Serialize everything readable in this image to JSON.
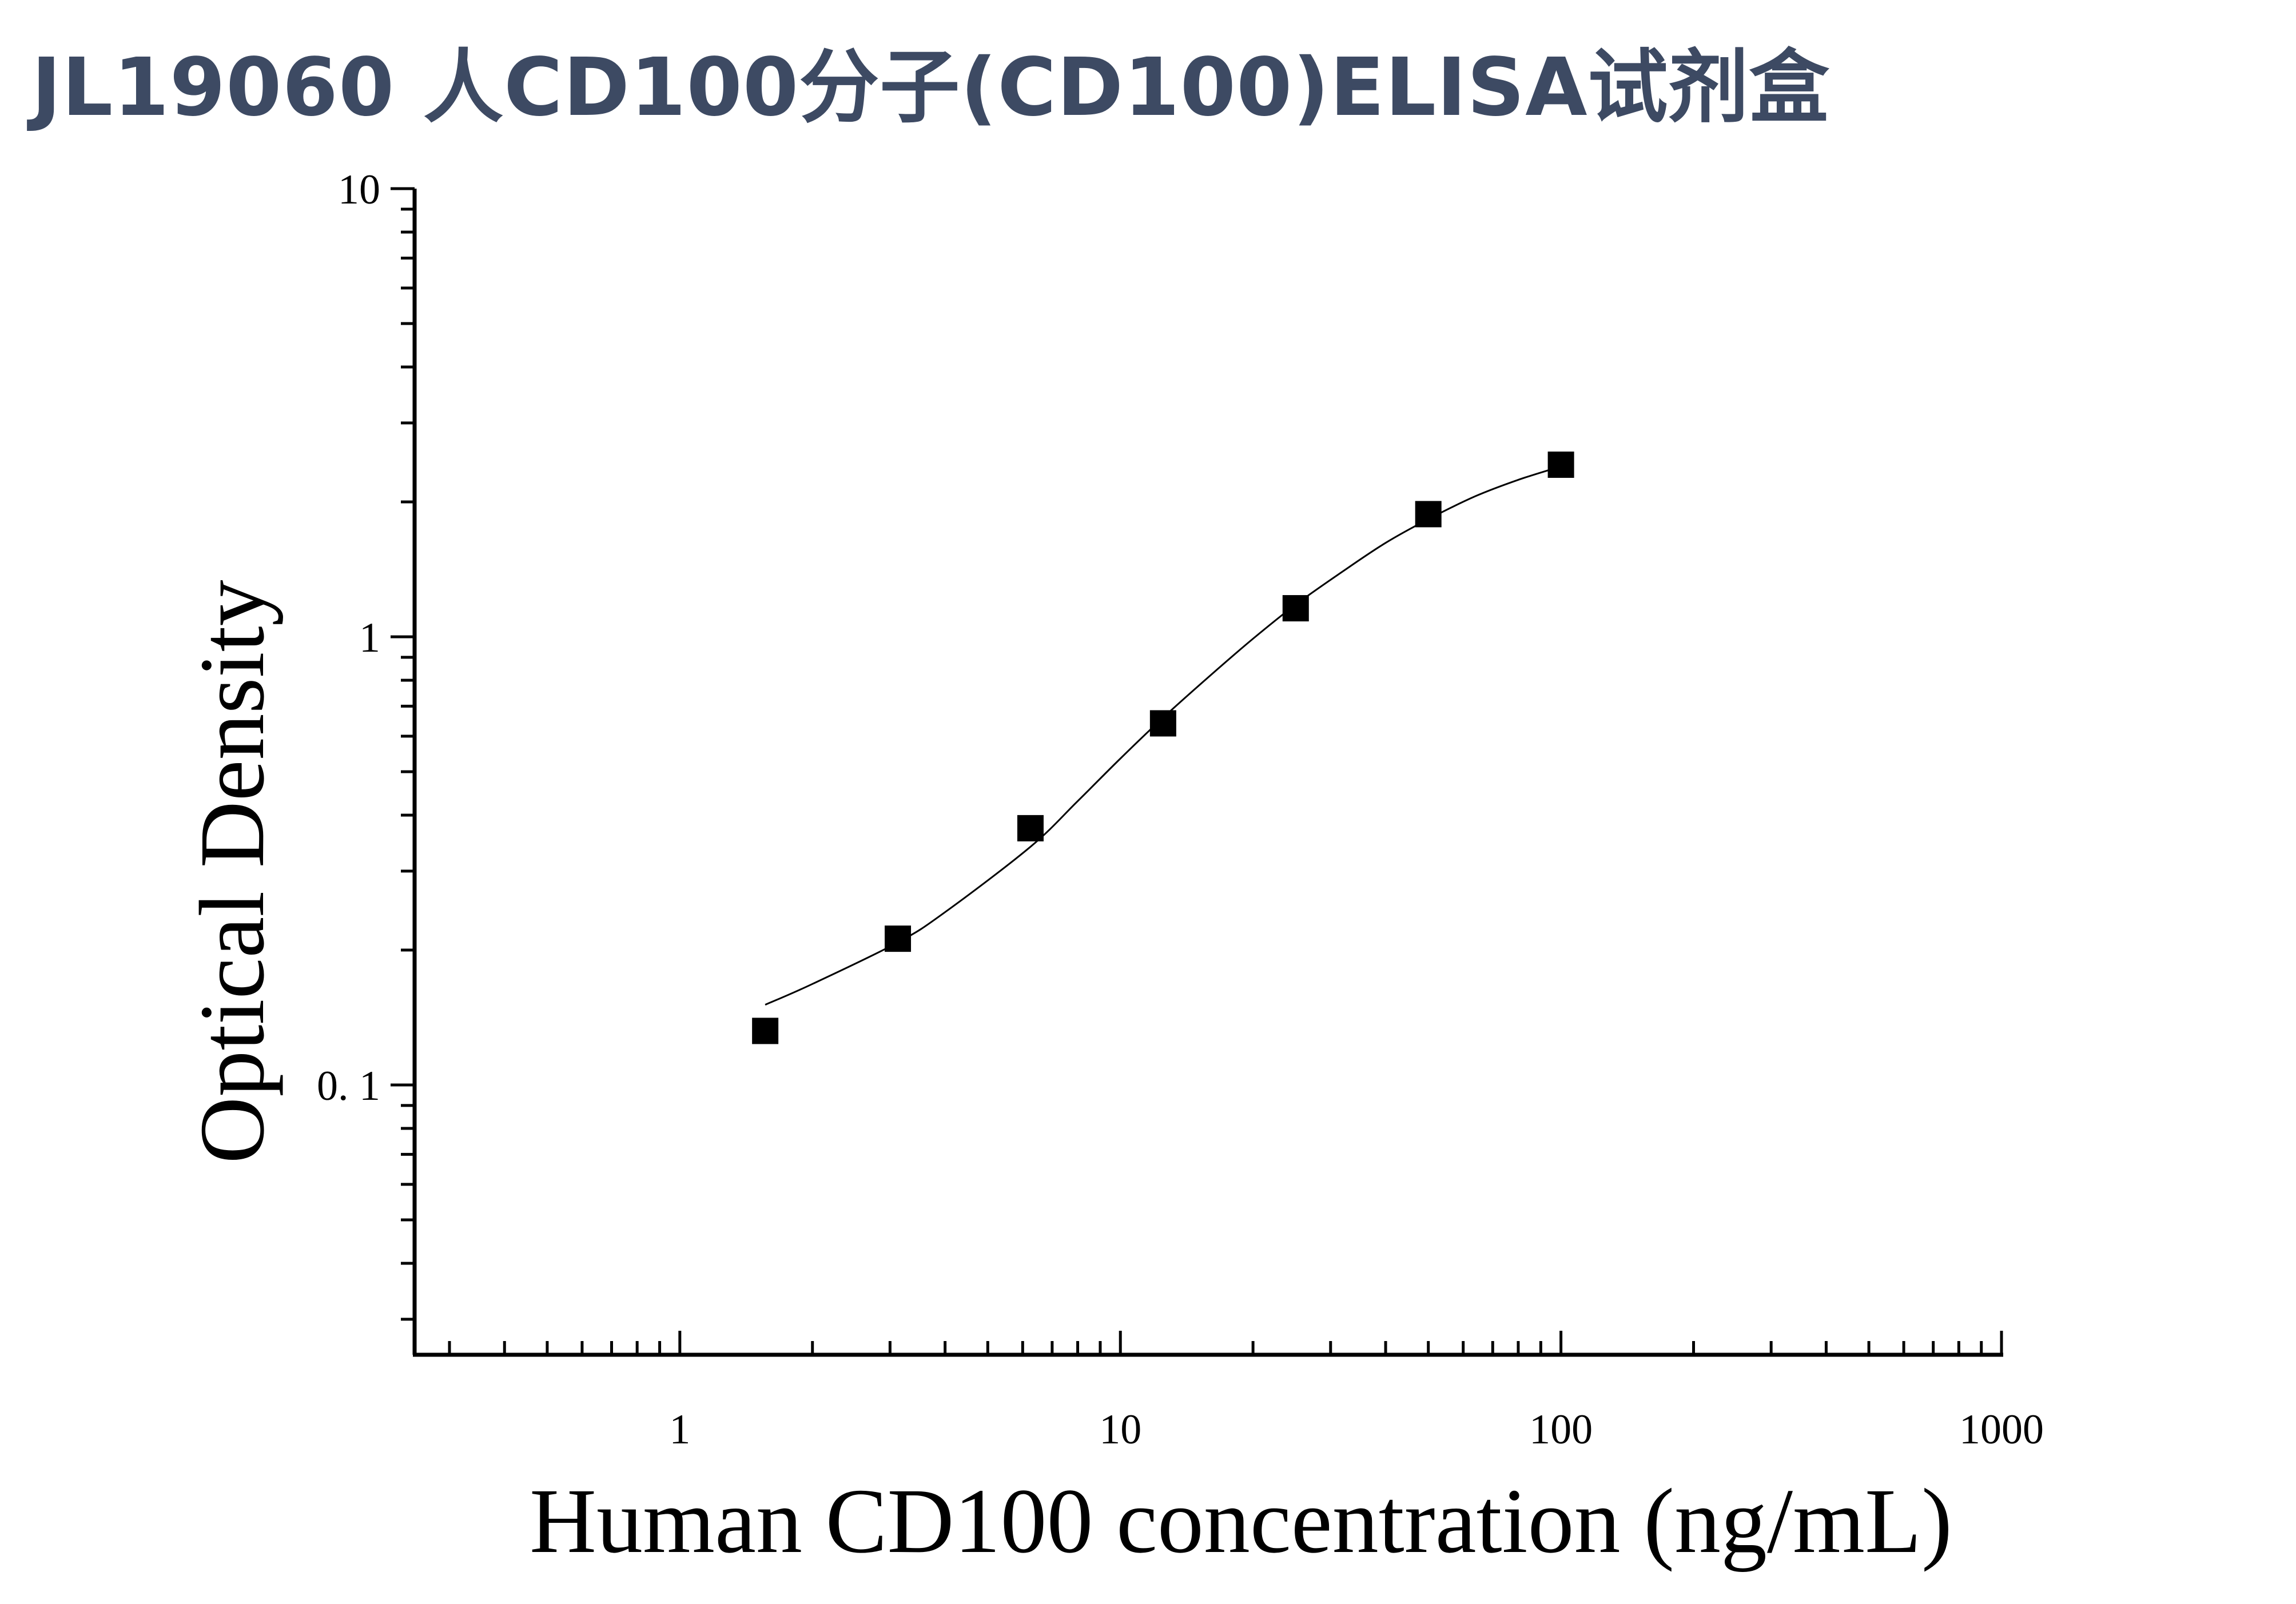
{
  "title": "JL19060 人CD100分子(CD100)ELISA试剂盒",
  "chart_data": {
    "type": "scatter",
    "xlabel": "Human CD100 concentration (ng/mL)",
    "ylabel": "Optical Density",
    "xscale": "log",
    "yscale": "log",
    "xlim": [
      0.25,
      1000
    ],
    "ylim": [
      0.025,
      10
    ],
    "xticks": [
      {
        "value": 1,
        "label": "1"
      },
      {
        "value": 10,
        "label": "10"
      },
      {
        "value": 100,
        "label": "100"
      },
      {
        "value": 1000,
        "label": "1000"
      }
    ],
    "yticks": [
      {
        "value": 0.1,
        "label": "0. 1"
      },
      {
        "value": 1,
        "label": "1"
      },
      {
        "value": 10,
        "label": "10"
      }
    ],
    "points": [
      {
        "x": 1.5625,
        "y": 0.132
      },
      {
        "x": 3.125,
        "y": 0.212
      },
      {
        "x": 6.25,
        "y": 0.374
      },
      {
        "x": 12.5,
        "y": 0.641
      },
      {
        "x": 25,
        "y": 1.158
      },
      {
        "x": 50,
        "y": 1.878
      },
      {
        "x": 100,
        "y": 2.421
      }
    ],
    "fit_curve": [
      {
        "x": 1.5625,
        "y": 0.151
      },
      {
        "x": 2,
        "y": 0.168
      },
      {
        "x": 3.125,
        "y": 0.208
      },
      {
        "x": 4,
        "y": 0.243
      },
      {
        "x": 6.25,
        "y": 0.34
      },
      {
        "x": 8,
        "y": 0.43
      },
      {
        "x": 10,
        "y": 0.535
      },
      {
        "x": 12.5,
        "y": 0.66
      },
      {
        "x": 16,
        "y": 0.82
      },
      {
        "x": 20,
        "y": 0.99
      },
      {
        "x": 25,
        "y": 1.18
      },
      {
        "x": 32,
        "y": 1.4
      },
      {
        "x": 40,
        "y": 1.62
      },
      {
        "x": 50,
        "y": 1.83
      },
      {
        "x": 64,
        "y": 2.06
      },
      {
        "x": 80,
        "y": 2.24
      },
      {
        "x": 100,
        "y": 2.4
      }
    ],
    "marker": "square",
    "marker_color": "#000000",
    "grid": false,
    "legend": "none"
  }
}
